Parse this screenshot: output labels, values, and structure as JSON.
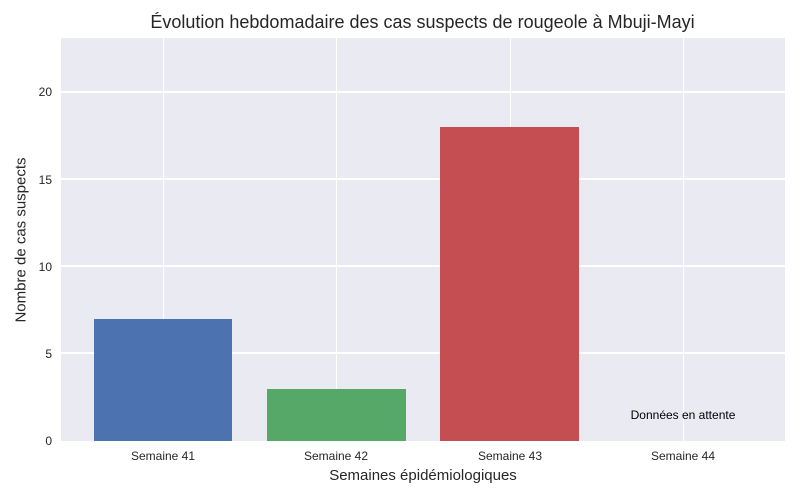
{
  "chart_data": {
    "type": "bar",
    "title": "Évolution hebdomadaire des cas suspects de rougeole à Mbuji-Mayi",
    "xlabel": "Semaines épidémiologiques",
    "ylabel": "Nombre de cas suspects",
    "categories": [
      "Semaine 41",
      "Semaine 42",
      "Semaine 43",
      "Semaine 44"
    ],
    "values": [
      7,
      3,
      18,
      null
    ],
    "colors": [
      "#4c72b0",
      "#55a868",
      "#c44e52",
      null
    ],
    "ylim": [
      0,
      23.1
    ],
    "yticks": [
      0,
      5,
      10,
      15,
      20
    ],
    "grid": true,
    "legend": null,
    "annotations": [
      {
        "text": "Données en attente",
        "category": "Semaine 44",
        "y": 1.5
      }
    ]
  },
  "labels": {
    "title": "Évolution hebdomadaire des cas suspects de rougeole à Mbuji-Mayi",
    "xlabel": "Semaines épidémiologiques",
    "ylabel": "Nombre de cas suspects",
    "yticks": [
      "0",
      "5",
      "10",
      "15",
      "20"
    ],
    "xticks": [
      "Semaine 41",
      "Semaine 42",
      "Semaine 43",
      "Semaine 44"
    ],
    "annotation": "Données en attente"
  }
}
